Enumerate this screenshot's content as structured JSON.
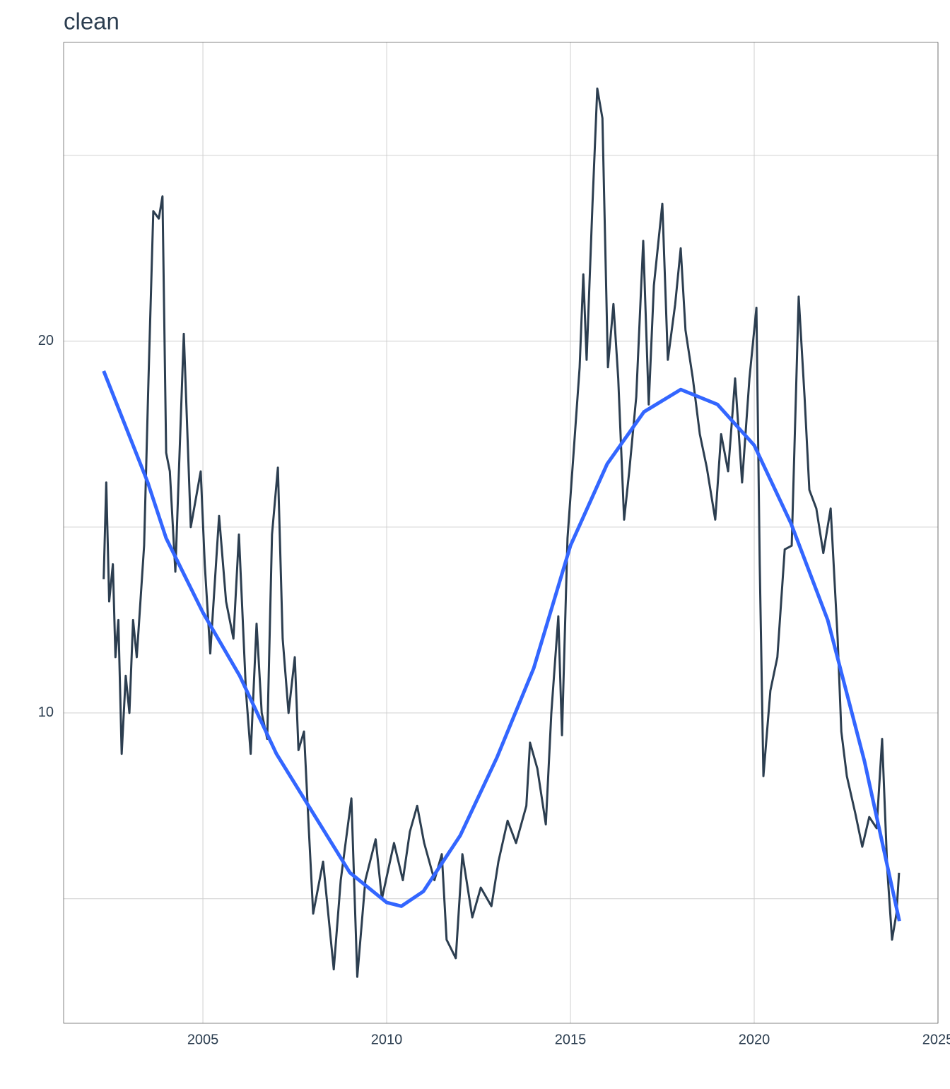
{
  "chart_data": {
    "type": "line",
    "title": "clean",
    "x": [
      2002.3,
      2002.37,
      2002.45,
      2002.55,
      2002.62,
      2002.7,
      2002.79,
      2002.9,
      2003.0,
      2003.1,
      2003.2,
      2003.3,
      2003.4,
      2003.52,
      2003.65,
      2003.8,
      2003.9,
      2004.0,
      2004.1,
      2004.25,
      2004.48,
      2004.67,
      2004.94,
      2005.05,
      2005.2,
      2005.44,
      2005.63,
      2005.83,
      2005.98,
      2006.17,
      2006.3,
      2006.46,
      2006.6,
      2006.75,
      2006.88,
      2007.04,
      2007.17,
      2007.33,
      2007.5,
      2007.6,
      2007.75,
      2007.88,
      2008.0,
      2008.27,
      2008.56,
      2008.75,
      2009.04,
      2009.2,
      2009.42,
      2009.7,
      2009.87,
      2010.2,
      2010.44,
      2010.63,
      2010.83,
      2011.02,
      2011.3,
      2011.5,
      2011.63,
      2011.88,
      2012.06,
      2012.33,
      2012.56,
      2012.85,
      2013.04,
      2013.29,
      2013.52,
      2013.8,
      2013.9,
      2014.1,
      2014.33,
      2014.48,
      2014.67,
      2014.77,
      2014.92,
      2015.1,
      2015.25,
      2015.35,
      2015.44,
      2015.6,
      2015.73,
      2015.87,
      2016.02,
      2016.17,
      2016.3,
      2016.46,
      2016.6,
      2016.79,
      2016.98,
      2017.13,
      2017.27,
      2017.5,
      2017.65,
      2017.85,
      2018.0,
      2018.13,
      2018.33,
      2018.52,
      2018.71,
      2018.94,
      2019.1,
      2019.29,
      2019.48,
      2019.67,
      2019.87,
      2020.06,
      2020.15,
      2020.25,
      2020.44,
      2020.63,
      2020.83,
      2021.02,
      2021.21,
      2021.37,
      2021.5,
      2021.69,
      2021.88,
      2022.08,
      2022.27,
      2022.37,
      2022.52,
      2022.75,
      2022.94,
      2023.13,
      2023.33,
      2023.48,
      2023.62,
      2023.75,
      2023.87,
      2023.94
    ],
    "series": [
      {
        "color": "#2c3e50",
        "values": [
          13.6,
          16.2,
          13.0,
          14.0,
          11.5,
          12.5,
          8.9,
          11.0,
          10.0,
          12.5,
          11.5,
          13.0,
          14.5,
          19.0,
          23.5,
          23.3,
          23.9,
          17.0,
          16.5,
          13.8,
          20.2,
          15.0,
          16.5,
          14.0,
          11.6,
          15.3,
          13.0,
          12.0,
          14.8,
          10.6,
          8.9,
          12.4,
          10.0,
          9.3,
          14.8,
          16.6,
          12.0,
          10.0,
          11.5,
          9.0,
          9.5,
          6.9,
          4.6,
          6.0,
          3.1,
          5.5,
          7.7,
          2.9,
          5.5,
          6.6,
          5.0,
          6.5,
          5.5,
          6.8,
          7.5,
          6.5,
          5.5,
          6.2,
          3.9,
          3.4,
          6.2,
          4.5,
          5.3,
          4.8,
          6.0,
          7.1,
          6.5,
          7.5,
          9.2,
          8.5,
          7.0,
          10.0,
          12.6,
          9.4,
          14.7,
          17.2,
          19.3,
          21.8,
          19.5,
          23.7,
          26.8,
          26.0,
          19.3,
          21.0,
          19.0,
          15.2,
          16.5,
          18.5,
          22.7,
          18.3,
          21.5,
          23.7,
          19.5,
          21.0,
          22.5,
          20.3,
          19.0,
          17.5,
          16.6,
          15.2,
          17.5,
          16.5,
          19.0,
          16.2,
          19.0,
          20.9,
          14.0,
          8.3,
          10.6,
          11.5,
          14.4,
          14.5,
          21.2,
          18.5,
          16.0,
          15.5,
          14.3,
          15.5,
          12.0,
          9.5,
          8.3,
          7.3,
          6.4,
          7.2,
          6.9,
          9.3,
          5.8,
          3.9,
          4.6,
          5.7
        ]
      },
      {
        "color": "#3366ff",
        "x": [
          2002.3,
          2003.5,
          2004,
          2005,
          2006,
          2007,
          2008,
          2009,
          2010,
          2010.4,
          2011,
          2012,
          2013,
          2014,
          2015,
          2016,
          2017,
          2018,
          2019,
          2020,
          2021,
          2022,
          2023,
          2023.95
        ],
        "values": [
          19.2,
          16.2,
          14.7,
          12.7,
          11.0,
          8.9,
          7.3,
          5.7,
          4.9,
          4.8,
          5.2,
          6.7,
          8.8,
          11.2,
          14.5,
          16.7,
          18.1,
          18.7,
          18.3,
          17.2,
          15.1,
          12.5,
          8.7,
          4.4
        ]
      }
    ],
    "xlim": [
      2001.21,
      2025.0
    ],
    "xticks": [
      2005,
      2010,
      2015,
      2020,
      2025
    ],
    "ylim": [
      1.65,
      28.04
    ],
    "yticks": [
      10,
      20
    ],
    "yminor": [
      5,
      15,
      25
    ],
    "grid": true
  }
}
